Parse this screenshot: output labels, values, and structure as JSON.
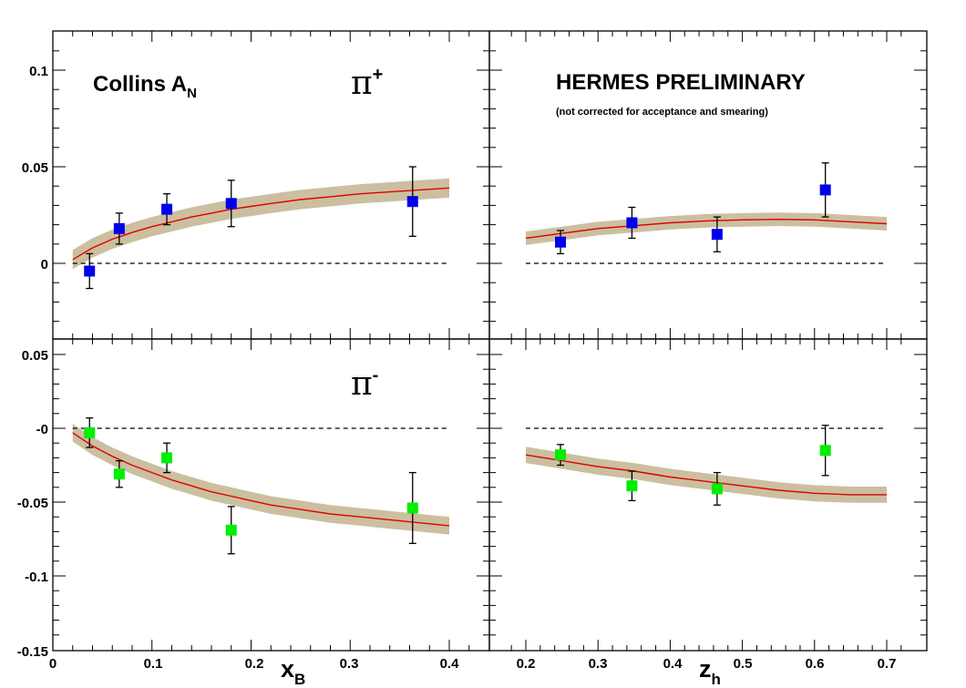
{
  "colors": {
    "band": "#cbbf9f",
    "curve": "#e00000",
    "pi_plus_marker": "#0000ee",
    "pi_minus_marker": "#00ee00",
    "error_bar": "#000000",
    "frame": "#000000",
    "zero_line": "#000000"
  },
  "annotations": {
    "collins_main": "Collins A",
    "collins_sub": "N",
    "hermes": "HERMES PRELIMINARY",
    "note": "(not corrected for acceptance and smearing)",
    "pi_plus_symbol": "π",
    "pi_plus_sign": "+",
    "pi_minus_symbol": "π",
    "pi_minus_sign": "-"
  },
  "axes": {
    "x_left_label_main": "x",
    "x_left_label_sub": "B",
    "x_right_label_main": "z",
    "x_right_label_sub": "h",
    "x_left_ticks": [
      "0",
      "0.1",
      "0.2",
      "0.3",
      "0.4"
    ],
    "x_right_ticks": [
      "0.2",
      "0.3",
      "0.4",
      "0.5",
      "0.6",
      "0.7"
    ],
    "y_top_ticks": [
      "0.1",
      "0.05",
      "0"
    ],
    "y_bottom_ticks": [
      "0.05",
      "-0",
      "-0.05",
      "-0.1",
      "-0.15"
    ]
  },
  "chart_data": [
    {
      "type": "scatter",
      "panel": "pi+ vs x_B",
      "xlim": [
        0,
        0.43
      ],
      "ylim": [
        -0.035,
        0.12
      ],
      "points": [
        {
          "x": 0.037,
          "y": -0.004,
          "err": 0.009
        },
        {
          "x": 0.067,
          "y": 0.018,
          "err": 0.008
        },
        {
          "x": 0.115,
          "y": 0.028,
          "err": 0.008
        },
        {
          "x": 0.18,
          "y": 0.031,
          "err": 0.012
        },
        {
          "x": 0.363,
          "y": 0.032,
          "err": 0.018
        }
      ],
      "curve": {
        "x": [
          0.02,
          0.04,
          0.06,
          0.08,
          0.1,
          0.12,
          0.14,
          0.16,
          0.18,
          0.2,
          0.22,
          0.25,
          0.28,
          0.31,
          0.34,
          0.37,
          0.4
        ],
        "y": [
          0.002,
          0.008,
          0.0125,
          0.016,
          0.019,
          0.0215,
          0.024,
          0.026,
          0.028,
          0.0295,
          0.031,
          0.033,
          0.0345,
          0.036,
          0.037,
          0.038,
          0.039
        ],
        "band_halfwidth": 0.005
      }
    },
    {
      "type": "scatter",
      "panel": "pi+ vs z_h",
      "xlim": [
        0.17,
        0.73
      ],
      "ylim": [
        -0.035,
        0.12
      ],
      "points": [
        {
          "x": 0.248,
          "y": 0.011,
          "err": 0.006
        },
        {
          "x": 0.347,
          "y": 0.021,
          "err": 0.008
        },
        {
          "x": 0.465,
          "y": 0.015,
          "err": 0.009
        },
        {
          "x": 0.615,
          "y": 0.038,
          "err": 0.014
        }
      ],
      "curve": {
        "x": [
          0.2,
          0.25,
          0.3,
          0.35,
          0.4,
          0.45,
          0.5,
          0.55,
          0.6,
          0.65,
          0.7
        ],
        "y": [
          0.013,
          0.0155,
          0.018,
          0.0195,
          0.021,
          0.022,
          0.0225,
          0.0228,
          0.0225,
          0.0215,
          0.0205
        ],
        "band_halfwidth": 0.0035
      }
    },
    {
      "type": "scatter",
      "panel": "pi- vs x_B",
      "xlim": [
        0,
        0.43
      ],
      "ylim": [
        -0.15,
        0.06
      ],
      "points": [
        {
          "x": 0.037,
          "y": -0.003,
          "err": 0.01
        },
        {
          "x": 0.067,
          "y": -0.031,
          "err": 0.009
        },
        {
          "x": 0.115,
          "y": -0.02,
          "err": 0.01
        },
        {
          "x": 0.18,
          "y": -0.069,
          "err": 0.016
        },
        {
          "x": 0.363,
          "y": -0.054,
          "err": 0.024
        }
      ],
      "curve": {
        "x": [
          0.02,
          0.04,
          0.06,
          0.08,
          0.1,
          0.12,
          0.14,
          0.16,
          0.18,
          0.2,
          0.22,
          0.25,
          0.28,
          0.31,
          0.34,
          0.37,
          0.4
        ],
        "y": [
          -0.003,
          -0.012,
          -0.019,
          -0.025,
          -0.03,
          -0.035,
          -0.039,
          -0.043,
          -0.046,
          -0.049,
          -0.052,
          -0.055,
          -0.058,
          -0.06,
          -0.062,
          -0.064,
          -0.066
        ],
        "band_halfwidth": 0.006
      }
    },
    {
      "type": "scatter",
      "panel": "pi- vs z_h",
      "xlim": [
        0.17,
        0.73
      ],
      "ylim": [
        -0.15,
        0.06
      ],
      "points": [
        {
          "x": 0.248,
          "y": -0.018,
          "err": 0.007
        },
        {
          "x": 0.347,
          "y": -0.039,
          "err": 0.01
        },
        {
          "x": 0.465,
          "y": -0.041,
          "err": 0.011
        },
        {
          "x": 0.615,
          "y": -0.015,
          "err": 0.017
        }
      ],
      "curve": {
        "x": [
          0.2,
          0.25,
          0.3,
          0.35,
          0.4,
          0.45,
          0.5,
          0.55,
          0.6,
          0.65,
          0.7
        ],
        "y": [
          -0.018,
          -0.022,
          -0.026,
          -0.029,
          -0.033,
          -0.036,
          -0.039,
          -0.042,
          -0.044,
          -0.045,
          -0.045
        ],
        "band_halfwidth": 0.0055
      }
    }
  ]
}
